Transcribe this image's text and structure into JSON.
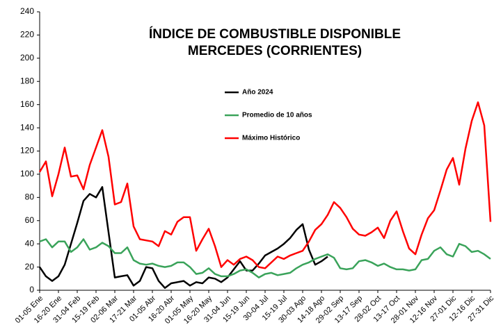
{
  "chart_data": {
    "type": "line",
    "title": [
      "ÍNDICE DE COMBUSTIBLE DISPONIBLE",
      "MERCEDES (CORRIENTES)"
    ],
    "categories": [
      "01-05 Ene",
      null,
      null,
      "16-20 Ene",
      null,
      null,
      "31-04 Feb",
      null,
      null,
      "15-19 Feb",
      null,
      null,
      "02-06 Mar",
      null,
      null,
      "17-21 Mar",
      null,
      null,
      "01-05 Abr",
      null,
      null,
      "16-20 Abr",
      null,
      null,
      "01-05 May",
      null,
      null,
      "16-20 May",
      null,
      null,
      "31-04 Jun",
      null,
      null,
      "15-19 Jun",
      null,
      null,
      "30-04 Jul",
      null,
      null,
      "15-19 Jul",
      null,
      null,
      "30-03 Ago",
      null,
      null,
      "14-18 Ago",
      null,
      null,
      "29-02 Sep",
      null,
      null,
      "13-17 Sep",
      null,
      null,
      "28-02 Oct",
      null,
      null,
      "13-17 Oct",
      null,
      null,
      "28-01 Nov",
      null,
      null,
      "12-16 Nov",
      null,
      null,
      "27-01 Dic",
      null,
      null,
      "12-16 Dic",
      null,
      null,
      "27-31 Dic"
    ],
    "series": [
      {
        "name": "Año 2024",
        "color": "#000000",
        "values": [
          20,
          12,
          8,
          12,
          22,
          40,
          58,
          77,
          83,
          80,
          89,
          50,
          11,
          12,
          13,
          4,
          8,
          20,
          19,
          8,
          2,
          6,
          7,
          8,
          4,
          7,
          6,
          11,
          10,
          7,
          11,
          18,
          25,
          17,
          17,
          23,
          30,
          33,
          36,
          40,
          45,
          52,
          57,
          35,
          22,
          25,
          29,
          null,
          null,
          null,
          null,
          null,
          null,
          null,
          null,
          null,
          null,
          null,
          null,
          null,
          null,
          null,
          null,
          null,
          null,
          null,
          null,
          null,
          null,
          null,
          null,
          null,
          null
        ]
      },
      {
        "name": "Promedio de 10 años",
        "color": "#3aa35a",
        "values": [
          42,
          44,
          37,
          42,
          42,
          33,
          37,
          44,
          35,
          37,
          41,
          38,
          32,
          32,
          37,
          26,
          23,
          22,
          23,
          21,
          20,
          21,
          24,
          24,
          20,
          14,
          15,
          19,
          14,
          12,
          12,
          14,
          17,
          18,
          15,
          11,
          14,
          15,
          13,
          14,
          15,
          19,
          22,
          24,
          27,
          29,
          31,
          28,
          19,
          18,
          19,
          25,
          26,
          24,
          21,
          23,
          20,
          18,
          18,
          17,
          18,
          26,
          27,
          34,
          37,
          31,
          29,
          40,
          38,
          33,
          34,
          31,
          27
        ]
      },
      {
        "name": "Máximo Histórico",
        "color": "#ff0000",
        "values": [
          102,
          111,
          81,
          100,
          123,
          98,
          99,
          87,
          108,
          123,
          138,
          115,
          74,
          76,
          92,
          55,
          44,
          43,
          42,
          38,
          51,
          48,
          59,
          63,
          63,
          34,
          44,
          53,
          38,
          20,
          26,
          22,
          27,
          29,
          26,
          20,
          19,
          24,
          29,
          27,
          30,
          32,
          34,
          42,
          52,
          57,
          65,
          76,
          71,
          63,
          53,
          48,
          47,
          50,
          54,
          45,
          60,
          68,
          51,
          36,
          31,
          48,
          62,
          69,
          86,
          104,
          114,
          91,
          122,
          146,
          162,
          142,
          59
        ]
      }
    ],
    "ylim": [
      0,
      240
    ],
    "yticks": [
      0,
      20,
      40,
      60,
      80,
      100,
      120,
      140,
      160,
      180,
      200,
      220,
      240
    ]
  }
}
